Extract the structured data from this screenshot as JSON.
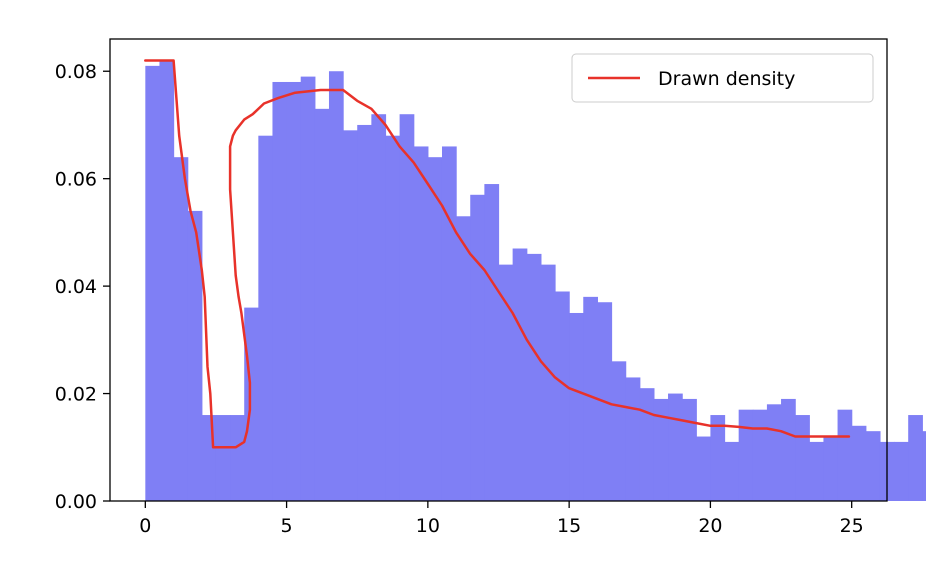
{
  "chart_data": {
    "type": "bar",
    "title": "",
    "xlabel": "",
    "ylabel": "",
    "xlim": [
      -1.25,
      26.25
    ],
    "ylim": [
      0,
      0.086
    ],
    "grid": false,
    "legend_position": "top-right",
    "x_ticks": [
      0,
      5,
      10,
      15,
      20,
      25
    ],
    "x_tick_labels": [
      "0",
      "5",
      "10",
      "15",
      "20",
      "25"
    ],
    "y_ticks": [
      0,
      0.02,
      0.04,
      0.06,
      0.08
    ],
    "y_tick_labels": [
      "0.00",
      "0.02",
      "0.04",
      "0.06",
      "0.08"
    ],
    "histogram": {
      "color": "#7f7ff5",
      "bin_start": 0,
      "bin_width": 0.5,
      "heights": [
        0.081,
        0.082,
        0.064,
        0.054,
        0.016,
        0.016,
        0.016,
        0.036,
        0.068,
        0.078,
        0.078,
        0.079,
        0.073,
        0.08,
        0.069,
        0.07,
        0.072,
        0.068,
        0.072,
        0.066,
        0.064,
        0.066,
        0.053,
        0.057,
        0.059,
        0.044,
        0.047,
        0.046,
        0.044,
        0.039,
        0.035,
        0.038,
        0.037,
        0.026,
        0.023,
        0.021,
        0.019,
        0.02,
        0.019,
        0.012,
        0.016,
        0.011,
        0.017,
        0.017,
        0.018,
        0.019,
        0.016,
        0.011,
        0.012,
        0.017,
        0.014,
        0.013,
        0.011,
        0.011,
        0.016,
        0.013,
        0.015
      ]
    },
    "series": [
      {
        "name": "Drawn density",
        "color": "#e8322a",
        "x": [
          0.0,
          1.0,
          1.1,
          1.2,
          1.4,
          1.6,
          1.8,
          2.0,
          2.1,
          2.2,
          2.3,
          2.4,
          2.5,
          2.9,
          3.2,
          3.5,
          3.6,
          3.7,
          3.7,
          3.6,
          3.5,
          3.4,
          3.3,
          3.2,
          3.1,
          3.0,
          3.0,
          3.1,
          3.2,
          3.5,
          3.8,
          4.2,
          4.7,
          5.3,
          6.2,
          6.5,
          7.0,
          7.5,
          8.0,
          8.5,
          9.0,
          9.5,
          10.0,
          10.5,
          11.0,
          11.5,
          12.0,
          12.5,
          13.0,
          13.5,
          14.0,
          14.5,
          15.0,
          15.5,
          16.0,
          16.5,
          17.0,
          17.5,
          18.0,
          18.5,
          19.0,
          19.5,
          20.0,
          20.5,
          21.0,
          21.5,
          22.0,
          22.5,
          23.0,
          23.5,
          24.0,
          24.5,
          24.9
        ],
        "y": [
          0.082,
          0.082,
          0.075,
          0.068,
          0.06,
          0.054,
          0.05,
          0.043,
          0.038,
          0.025,
          0.02,
          0.01,
          0.01,
          0.01,
          0.01,
          0.011,
          0.013,
          0.017,
          0.022,
          0.027,
          0.031,
          0.035,
          0.038,
          0.042,
          0.05,
          0.058,
          0.066,
          0.068,
          0.069,
          0.071,
          0.072,
          0.074,
          0.075,
          0.076,
          0.0765,
          0.0765,
          0.0765,
          0.0745,
          0.073,
          0.07,
          0.066,
          0.063,
          0.059,
          0.055,
          0.05,
          0.046,
          0.043,
          0.039,
          0.035,
          0.03,
          0.026,
          0.023,
          0.021,
          0.02,
          0.019,
          0.018,
          0.0175,
          0.017,
          0.016,
          0.0155,
          0.015,
          0.0145,
          0.014,
          0.014,
          0.0138,
          0.0135,
          0.0135,
          0.013,
          0.012,
          0.012,
          0.012,
          0.012,
          0.012
        ]
      }
    ]
  }
}
